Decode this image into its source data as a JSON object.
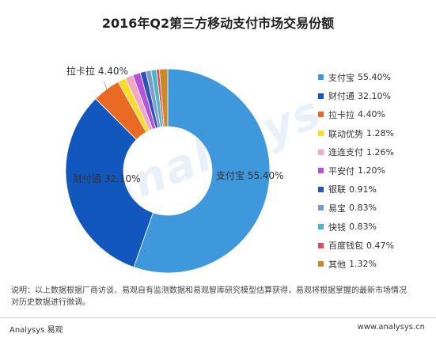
{
  "title": "2016年Q2第三方移动支付市场交易份额",
  "watermark": "Analysys",
  "chart_data": {
    "type": "pie",
    "donut": true,
    "title": "2016年Q2第三方移动支付市场交易份额",
    "legend_position": "right",
    "unit": "%",
    "slices": [
      {
        "label": "支付宝",
        "value": 55.4,
        "display": "55.40%",
        "color": "#3f97dc"
      },
      {
        "label": "财付通",
        "value": 32.1,
        "display": "32.10%",
        "color": "#1157be"
      },
      {
        "label": "拉卡拉",
        "value": 4.4,
        "display": "4.40%",
        "color": "#ea6a24"
      },
      {
        "label": "联动优势",
        "value": 1.28,
        "display": "1.28%",
        "color": "#f7dc2a"
      },
      {
        "label": "连连支付",
        "value": 1.26,
        "display": "1.26%",
        "color": "#f2a7c2"
      },
      {
        "label": "平安付",
        "value": 1.2,
        "display": "1.20%",
        "color": "#b554d8"
      },
      {
        "label": "银联",
        "value": 0.91,
        "display": "0.91%",
        "color": "#2d52b8"
      },
      {
        "label": "易宝",
        "value": 0.83,
        "display": "0.83%",
        "color": "#7d99cf"
      },
      {
        "label": "快钱",
        "value": 0.83,
        "display": "0.83%",
        "color": "#49b8c3"
      },
      {
        "label": "百度钱包",
        "value": 0.47,
        "display": "0.47%",
        "color": "#e04a5e"
      },
      {
        "label": "其他",
        "value": 1.32,
        "display": "1.32%",
        "color": "#c9882a"
      }
    ],
    "slice_labels": [
      {
        "label": "支付宝",
        "value": "55.40%"
      },
      {
        "label": "财付通",
        "value": "32.10%"
      },
      {
        "label": "拉卡拉",
        "value": "4.40%"
      }
    ]
  },
  "footnote": {
    "line1": "说明：以上数据根据厂商访谈、易观自有监测数据和易观智库研究模型估算获得，易观将根据掌握的最新市场情况",
    "line2": "对历史数据进行微调。"
  },
  "brand_left": "Analysys 易观",
  "brand_right": "www.analysys.cn"
}
